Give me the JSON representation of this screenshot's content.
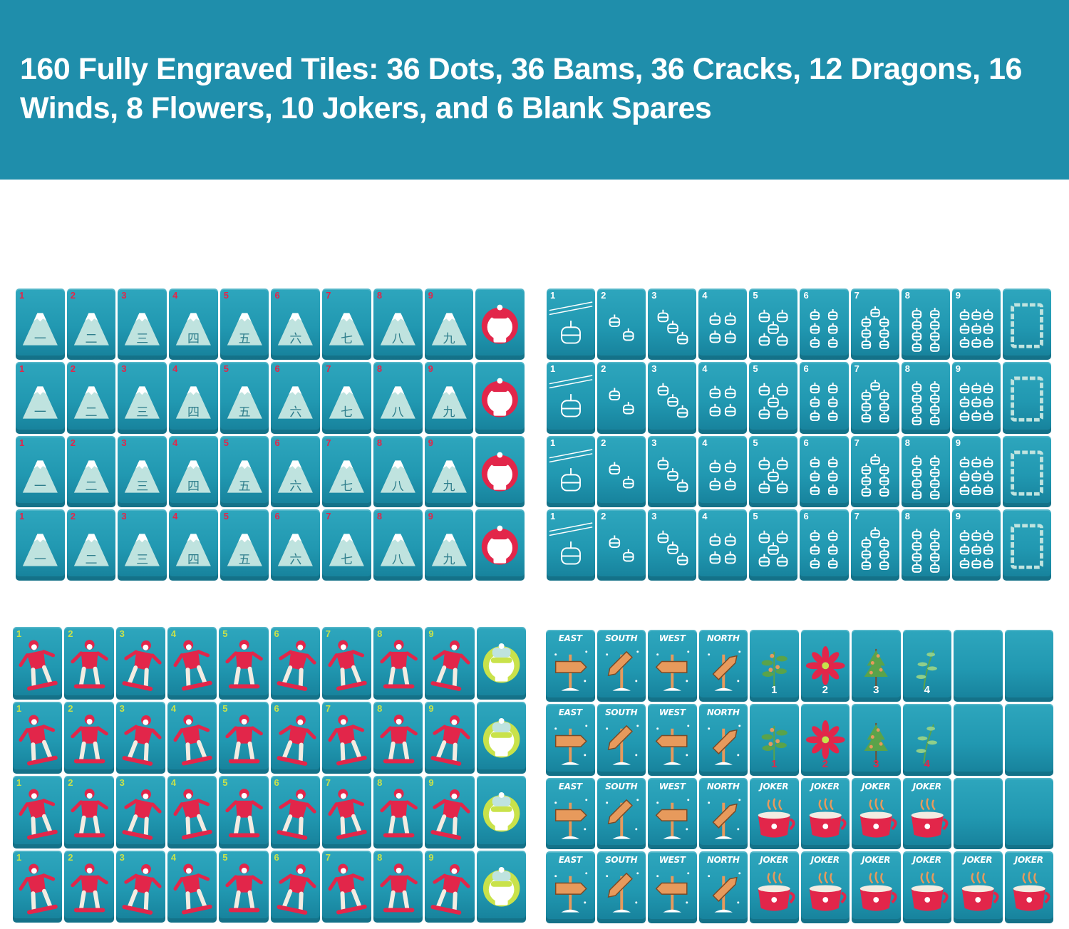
{
  "banner": {
    "headline": "160 Fully Engraved Tiles: 36 Dots, 36 Bams, 36 Cracks, 12 Dragons, 16 Winds, 8 Flowers, 10 Jokers, and 6 Blank Spares",
    "background": "#1f8eab"
  },
  "tile_colors": {
    "body": "#2198b1",
    "engrave_red": "#e2264a",
    "engrave_white": "#ffffff",
    "engrave_mint": "#bfe3df",
    "engrave_lime": "#c9e24a",
    "engrave_orange": "#e79a5c"
  },
  "cracks_numerals": [
    "一",
    "二",
    "三",
    "四",
    "五",
    "六",
    "七",
    "八",
    "九"
  ],
  "dots_numbers": [
    "1",
    "2",
    "3",
    "4",
    "5",
    "6",
    "7",
    "8",
    "9"
  ],
  "bams_numbers": [
    "1",
    "2",
    "3",
    "4",
    "5",
    "6",
    "7",
    "8",
    "9"
  ],
  "winds": [
    "EAST",
    "SOUTH",
    "WEST",
    "NORTH"
  ],
  "flowers": [
    "1",
    "2",
    "3",
    "4"
  ],
  "joker_label": "JOKER",
  "groups": [
    {
      "name": "cracks",
      "rows": 4,
      "columns": 10,
      "dragon": "red-skier-dragon"
    },
    {
      "name": "dots",
      "rows": 4,
      "columns": 10,
      "dragon": "white-frame-dragon"
    },
    {
      "name": "bams",
      "rows": 4,
      "columns": 10,
      "dragon": "green-skier-dragon"
    },
    {
      "name": "honors",
      "rows": 4,
      "columns": 10
    }
  ]
}
